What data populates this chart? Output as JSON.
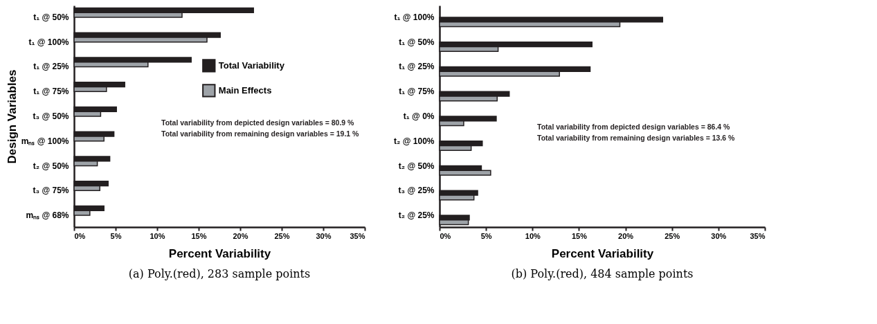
{
  "chart_data": [
    {
      "type": "bar",
      "orientation": "horizontal",
      "title": "(a) Poly.(red), 283 sample points",
      "xlabel": "Percent Variability",
      "ylabel": "Design Variables",
      "categories": [
        "t₁ @ 50%",
        "t₁ @ 100%",
        "t₁ @ 25%",
        "t₁ @ 75%",
        "t₃ @ 50%",
        "mₙₛ @ 100%",
        "t₂ @ 50%",
        "t₃ @ 75%",
        "mₙₛ @ 68%"
      ],
      "series": [
        {
          "name": "Total Variability",
          "color": "#231f20",
          "values": [
            21.6,
            17.6,
            14.1,
            6.1,
            5.1,
            4.8,
            4.3,
            4.1,
            3.6
          ]
        },
        {
          "name": "Main Effects",
          "color": "#9ea3a8",
          "values": [
            13.0,
            16.0,
            8.9,
            3.9,
            3.2,
            3.6,
            2.8,
            3.1,
            1.9
          ]
        }
      ],
      "xlim": [
        0,
        35
      ],
      "xticks": [
        {
          "value": 0,
          "label": "0%"
        },
        {
          "value": 5,
          "label": "5%"
        },
        {
          "value": 10,
          "label": "10%"
        },
        {
          "value": 15,
          "label": "15%"
        },
        {
          "value": 20,
          "label": "20%"
        },
        {
          "value": 25,
          "label": "25%"
        },
        {
          "value": 30,
          "label": "30%"
        },
        {
          "value": 35,
          "label": "35%"
        }
      ],
      "legend": "right",
      "grid": false,
      "annotations": [
        "Total variability from depicted design variables = 80.9 %",
        "Total variability from remaining design variables = 19.1 %"
      ]
    },
    {
      "type": "bar",
      "orientation": "horizontal",
      "title": "(b) Poly.(red), 484 sample points",
      "xlabel": "Percent Variability",
      "categories": [
        "t₁ @ 100%",
        "t₁ @ 50%",
        "t₁ @ 25%",
        "t₁ @ 75%",
        "t₁ @ 0%",
        "t₂ @ 100%",
        "t₂ @ 50%",
        "t₃ @ 25%",
        "t₂ @ 25%"
      ],
      "series": [
        {
          "color": "#231f20",
          "values": [
            24.0,
            16.4,
            16.2,
            7.5,
            6.1,
            4.6,
            4.5,
            4.1,
            3.2
          ]
        },
        {
          "color": "#9ea3a8",
          "values": [
            19.4,
            6.3,
            12.9,
            6.2,
            2.6,
            3.4,
            5.5,
            3.7,
            3.1
          ]
        }
      ],
      "xlim": [
        0,
        35
      ],
      "xticks": [
        {
          "value": 0,
          "label": "0%"
        },
        {
          "value": 5,
          "label": "5%"
        },
        {
          "value": 10,
          "label": "10%"
        },
        {
          "value": 15,
          "label": "15%"
        },
        {
          "value": 20,
          "label": "20%"
        },
        {
          "value": 25,
          "label": "25%"
        },
        {
          "value": 30,
          "label": "30%"
        },
        {
          "value": 35,
          "label": "35%"
        }
      ],
      "legend": false,
      "grid": false,
      "annotations": [
        "Total variability from depicted design variables = 86.4 %",
        "Total variability from remaining design variables = 13.6 %"
      ]
    }
  ]
}
